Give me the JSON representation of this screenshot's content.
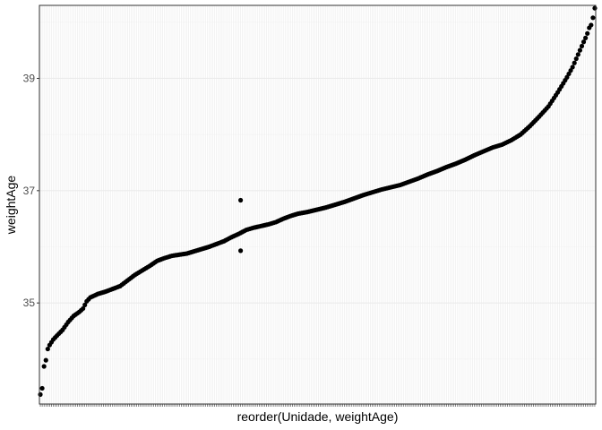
{
  "chart_data": {
    "type": "scatter",
    "title": "",
    "xlabel": "reorder(Unidade, weightAge)",
    "ylabel": "weightAge",
    "x_categories_count": 300,
    "x_tick_labels_shown": false,
    "ylim": [
      33.2,
      40.3
    ],
    "yticks": [
      35,
      37,
      39
    ],
    "ytick_labels": [
      "35",
      "37",
      "39"
    ],
    "grid": true,
    "legend": "none",
    "point_color": "#000000",
    "panel_border_color": "#333333",
    "grid_major_color": "#ebebeb",
    "grid_minor_color": "#f5f5f5",
    "curve_points": [
      [
        1,
        33.37
      ],
      [
        2,
        33.48
      ],
      [
        3,
        33.87
      ],
      [
        4,
        33.98
      ],
      [
        5,
        34.18
      ],
      [
        6,
        34.25
      ],
      [
        8,
        34.35
      ],
      [
        10,
        34.42
      ],
      [
        13,
        34.52
      ],
      [
        16,
        34.66
      ],
      [
        19,
        34.77
      ],
      [
        22,
        34.84
      ],
      [
        24,
        34.9
      ],
      [
        26,
        35.03
      ],
      [
        28,
        35.1
      ],
      [
        32,
        35.16
      ],
      [
        36,
        35.2
      ],
      [
        40,
        35.25
      ],
      [
        44,
        35.3
      ],
      [
        48,
        35.4
      ],
      [
        52,
        35.5
      ],
      [
        56,
        35.58
      ],
      [
        60,
        35.66
      ],
      [
        64,
        35.75
      ],
      [
        68,
        35.8
      ],
      [
        72,
        35.84
      ],
      [
        76,
        35.86
      ],
      [
        80,
        35.88
      ],
      [
        84,
        35.92
      ],
      [
        88,
        35.96
      ],
      [
        92,
        36.0
      ],
      [
        96,
        36.05
      ],
      [
        100,
        36.1
      ],
      [
        104,
        36.17
      ],
      [
        108,
        36.23
      ],
      [
        112,
        36.3
      ],
      [
        116,
        36.34
      ],
      [
        120,
        36.37
      ],
      [
        124,
        36.4
      ],
      [
        128,
        36.44
      ],
      [
        132,
        36.5
      ],
      [
        136,
        36.55
      ],
      [
        140,
        36.59
      ],
      [
        145,
        36.62
      ],
      [
        150,
        36.66
      ],
      [
        155,
        36.7
      ],
      [
        160,
        36.75
      ],
      [
        165,
        36.8
      ],
      [
        170,
        36.86
      ],
      [
        175,
        36.92
      ],
      [
        180,
        36.97
      ],
      [
        185,
        37.02
      ],
      [
        190,
        37.06
      ],
      [
        195,
        37.1
      ],
      [
        200,
        37.16
      ],
      [
        205,
        37.22
      ],
      [
        210,
        37.29
      ],
      [
        215,
        37.35
      ],
      [
        220,
        37.42
      ],
      [
        225,
        37.48
      ],
      [
        230,
        37.55
      ],
      [
        235,
        37.63
      ],
      [
        240,
        37.7
      ],
      [
        245,
        37.77
      ],
      [
        250,
        37.82
      ],
      [
        255,
        37.9
      ],
      [
        260,
        38.0
      ],
      [
        265,
        38.15
      ],
      [
        270,
        38.32
      ],
      [
        275,
        38.5
      ],
      [
        280,
        38.75
      ],
      [
        285,
        39.02
      ],
      [
        288,
        39.2
      ],
      [
        290,
        39.35
      ],
      [
        292,
        39.5
      ],
      [
        294,
        39.65
      ],
      [
        295,
        39.72
      ],
      [
        296,
        39.8
      ],
      [
        297,
        39.9
      ],
      [
        298,
        39.95
      ],
      [
        299,
        40.08
      ],
      [
        300,
        40.25
      ]
    ],
    "outliers": [
      {
        "x": 109,
        "y": 36.83
      },
      {
        "x": 109,
        "y": 35.93
      }
    ]
  }
}
